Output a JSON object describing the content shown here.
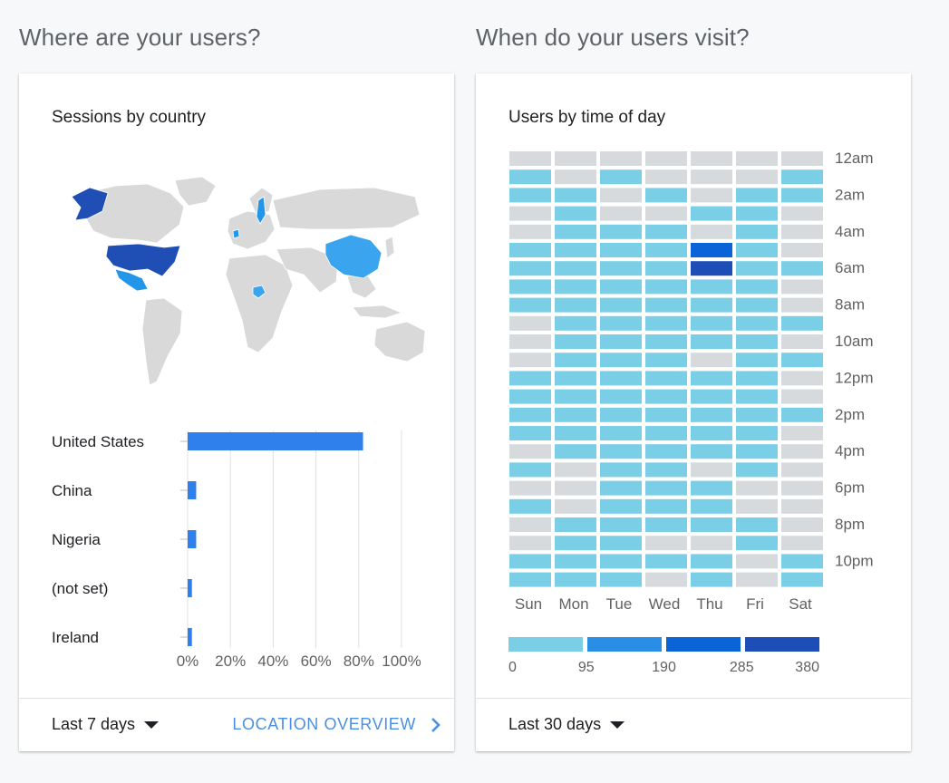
{
  "sections": {
    "left_title": "Where are your users?",
    "right_title": "When do your users visit?"
  },
  "left_card": {
    "title": "Sessions by country",
    "footer": {
      "range": "Last 7 days",
      "link": "LOCATION OVERVIEW"
    }
  },
  "right_card": {
    "title": "Users by time of day",
    "footer": {
      "range": "Last 30 days"
    }
  },
  "map_colors": {
    "land": "#d9d9d9",
    "dark": "#1f4fb5",
    "medium": "#2396ea",
    "light": "#3aa4ee"
  },
  "chart_data": [
    {
      "type": "bar",
      "orientation": "horizontal",
      "categories": [
        "United States",
        "China",
        "Nigeria",
        "(not set)",
        "Ireland"
      ],
      "values": [
        82,
        4,
        4,
        2,
        2
      ],
      "x_ticks": [
        "0%",
        "20%",
        "40%",
        "60%",
        "80%",
        "100%"
      ],
      "xlim": [
        0,
        100
      ],
      "grid": true,
      "color": "#2f80ed"
    },
    {
      "type": "heatmap",
      "columns": [
        "Sun",
        "Mon",
        "Tue",
        "Wed",
        "Thu",
        "Fri",
        "Sat"
      ],
      "y_tick_labels": [
        "12am",
        "2am",
        "4am",
        "6am",
        "8am",
        "10am",
        "12pm",
        "2pm",
        "4pm",
        "6pm",
        "8pm",
        "10pm"
      ],
      "rows": 24,
      "levels": [
        [
          0,
          0,
          0,
          0,
          0,
          0,
          0
        ],
        [
          1,
          0,
          1,
          0,
          0,
          0,
          1
        ],
        [
          1,
          1,
          0,
          1,
          0,
          1,
          1
        ],
        [
          0,
          1,
          0,
          0,
          1,
          1,
          0
        ],
        [
          0,
          1,
          1,
          1,
          0,
          1,
          0
        ],
        [
          1,
          1,
          1,
          1,
          3,
          1,
          0
        ],
        [
          1,
          1,
          1,
          1,
          4,
          1,
          1
        ],
        [
          1,
          1,
          1,
          1,
          1,
          1,
          0
        ],
        [
          1,
          1,
          1,
          1,
          1,
          1,
          0
        ],
        [
          0,
          1,
          1,
          1,
          1,
          1,
          1
        ],
        [
          0,
          1,
          1,
          1,
          1,
          1,
          0
        ],
        [
          0,
          1,
          1,
          1,
          0,
          1,
          1
        ],
        [
          1,
          1,
          1,
          1,
          1,
          1,
          0
        ],
        [
          1,
          1,
          1,
          1,
          1,
          1,
          0
        ],
        [
          1,
          1,
          1,
          1,
          1,
          1,
          1
        ],
        [
          1,
          1,
          1,
          1,
          1,
          1,
          0
        ],
        [
          0,
          1,
          1,
          1,
          1,
          1,
          0
        ],
        [
          1,
          0,
          1,
          1,
          0,
          1,
          0
        ],
        [
          0,
          0,
          1,
          1,
          1,
          0,
          0
        ],
        [
          1,
          0,
          1,
          1,
          1,
          0,
          0
        ],
        [
          0,
          1,
          1,
          1,
          1,
          1,
          0
        ],
        [
          0,
          1,
          1,
          0,
          0,
          1,
          0
        ],
        [
          1,
          1,
          1,
          1,
          1,
          0,
          1
        ],
        [
          1,
          1,
          1,
          0,
          1,
          0,
          1
        ]
      ],
      "level_colors": [
        "#d7dadd",
        "#7acfe6",
        "#2a8de6",
        "#0b63d8",
        "#1d4eb8"
      ],
      "legend": {
        "colors": [
          "#7acfe6",
          "#2a8de6",
          "#0b63d8",
          "#1d4eb8"
        ],
        "labels": [
          "0",
          "95",
          "190",
          "285",
          "380"
        ]
      }
    }
  ]
}
